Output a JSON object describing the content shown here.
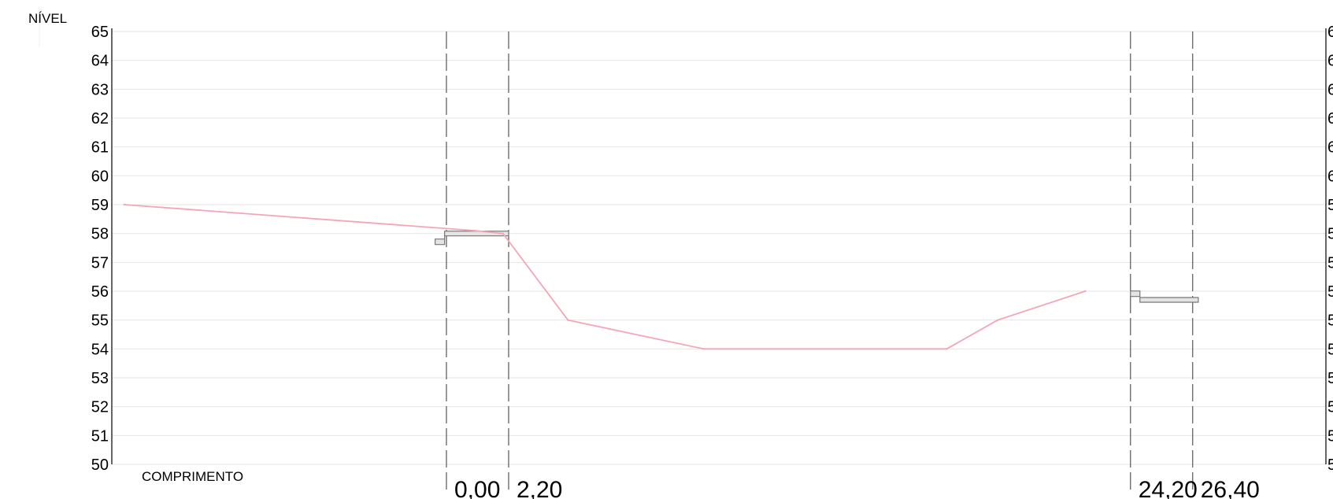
{
  "chart_data": {
    "type": "line",
    "ylabel": "NÍVEL",
    "xlabel": "COMPRIMENTO",
    "ylim": [
      50,
      65
    ],
    "yticks": [
      "50",
      "51",
      "52",
      "53",
      "54",
      "55",
      "56",
      "57",
      "58",
      "59",
      "60",
      "61",
      "62",
      "63",
      "64",
      "65"
    ],
    "grid": true,
    "stations": [
      "0,00",
      "2,20",
      "24,20",
      "26,40"
    ],
    "station_positions": [
      0.0,
      2.2,
      24.2,
      26.4
    ],
    "series": [
      {
        "color": "#f4a6b8",
        "x": [
          -11.4,
          1.0,
          2.0,
          4.3,
          9.1,
          17.7,
          19.5,
          22.6
        ],
        "values": [
          59.0,
          58.1,
          58.0,
          55.0,
          54.0,
          54.0,
          55.0,
          56.0
        ]
      }
    ],
    "structures": [
      {
        "name": "left-step",
        "x": [
          -0.4,
          2.2
        ],
        "levels": [
          57.7,
          58.0
        ]
      },
      {
        "name": "right-step",
        "x": [
          24.2,
          26.6
        ],
        "levels": [
          55.9,
          55.7
        ]
      }
    ],
    "colors": {
      "grid": "#e6e6e6",
      "profile": "#f4a6b8",
      "guide": "#555555",
      "axis": "#000000"
    }
  }
}
